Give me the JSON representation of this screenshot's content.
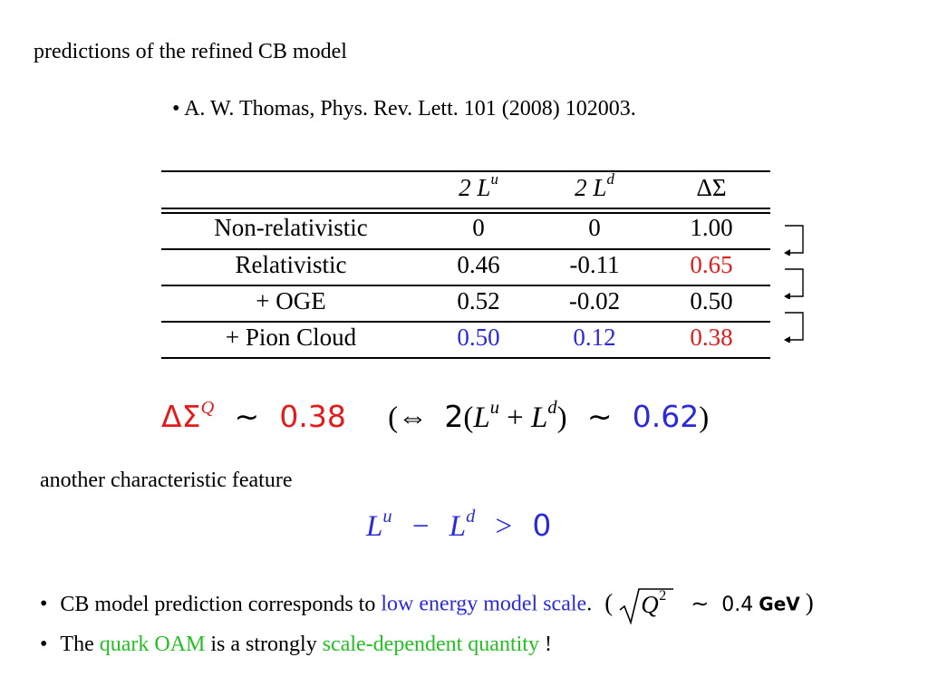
{
  "title": "predictions of the refined CB model",
  "reference": "• A. W. Thomas, Phys. Rev. Lett. 101 (2008) 102003.",
  "table": {
    "headers": [
      "",
      "2 L",
      "2 L",
      "ΔΣ"
    ],
    "header_sups": [
      "",
      "u",
      "d",
      ""
    ],
    "rows": [
      {
        "label": "Non-relativistic",
        "v1": "0",
        "v2": "0",
        "v3": "1.00"
      },
      {
        "label": "Relativistic",
        "v1": "0.46",
        "v2": "-0.11",
        "v3": "0.65"
      },
      {
        "label": "+ OGE",
        "v1": "0.52",
        "v2": "-0.02",
        "v3": "0.50"
      },
      {
        "label": "+ Pion Cloud",
        "v1": "0.50",
        "v2": "0.12",
        "v3": "0.38"
      }
    ]
  },
  "equation1": {
    "lhs": "ΔΣ",
    "lhs_sup": "Q",
    "sim": "∼",
    "value": "0.38",
    "open": "(",
    "iff": "⇔",
    "two": "2",
    "paren_open": "(",
    "L": "L",
    "sup_u": "u",
    "plus": "+",
    "sup_d": "d",
    "paren_close": ")",
    "value2": "0.62",
    "close": ")"
  },
  "feature_text": "another characteristic feature",
  "equation2": {
    "L": "L",
    "sup_u": "u",
    "minus": "−",
    "sup_d": "d",
    "gt": ">",
    "zero": "0"
  },
  "bullets": {
    "b1": {
      "dot": "•",
      "text1": "CB model prediction corresponds to ",
      "highlight": "low energy model scale",
      "text2": ".",
      "paren_open": "(",
      "Q": "Q",
      "sup2": "2",
      "sim": "∼",
      "value": "0.4",
      "unit": "GeV",
      "paren_close": ")"
    },
    "b2": {
      "dot": "•",
      "text1": "The ",
      "highlight1": "quark OAM",
      "text2": " is a strongly ",
      "highlight2": "scale-dependent quantity",
      "text3": " !"
    }
  },
  "colors": {
    "blue": "#2a2adb",
    "red": "#e41b1b",
    "green": "#22c022"
  }
}
